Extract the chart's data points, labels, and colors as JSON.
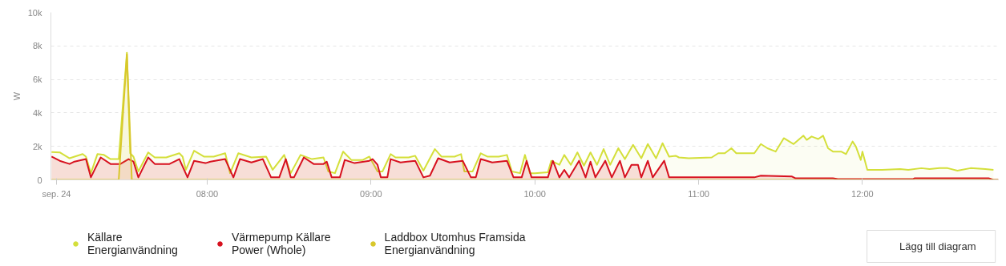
{
  "chart_data": {
    "type": "area",
    "ylabel": "W",
    "xlim": [
      7.046,
      12.83
    ],
    "xticks": [
      {
        "value": 7.08,
        "label": "sep. 24"
      },
      {
        "value": 8,
        "label": "08:00"
      },
      {
        "value": 9,
        "label": "09:00"
      },
      {
        "value": 10,
        "label": "10:00"
      },
      {
        "value": 11,
        "label": "11:00"
      },
      {
        "value": 12,
        "label": "12:00"
      }
    ],
    "ylim": [
      0,
      10000
    ],
    "yticks": [
      0,
      {
        "value": 2000,
        "label": "2k"
      },
      {
        "value": 4000,
        "label": "4k"
      },
      {
        "value": 6000,
        "label": "6k"
      },
      {
        "value": 8000,
        "label": "8k"
      },
      {
        "value": 10000,
        "label": "10k"
      }
    ],
    "grid": "y",
    "legend": "bottom",
    "annotations": [
      "Lägg till diagram"
    ],
    "series": [
      {
        "name": "Källare\nEnergianvändning",
        "color": "#d4df3a",
        "x": [
          7.05,
          7.1,
          7.16,
          7.24,
          7.26,
          7.29,
          7.33,
          7.37,
          7.41,
          7.46,
          7.51,
          7.53,
          7.55,
          7.58,
          7.64,
          7.68,
          7.75,
          7.83,
          7.85,
          7.87,
          7.92,
          7.98,
          8.04,
          8.11,
          8.14,
          8.19,
          8.27,
          8.36,
          8.4,
          8.47,
          8.51,
          8.57,
          8.64,
          8.71,
          8.74,
          8.78,
          8.83,
          8.88,
          8.95,
          8.99,
          9.04,
          9.07,
          9.12,
          9.15,
          9.23,
          9.27,
          9.32,
          9.36,
          9.39,
          9.43,
          9.51,
          9.55,
          9.57,
          9.62,
          9.67,
          9.71,
          9.78,
          9.83,
          9.86,
          9.91,
          9.94,
          9.97,
          10.0,
          10.08,
          10.1,
          10.15,
          10.18,
          10.22,
          10.26,
          10.3,
          10.34,
          10.38,
          10.42,
          10.46,
          10.51,
          10.55,
          10.6,
          10.65,
          10.69,
          10.74,
          10.78,
          10.82,
          10.86,
          10.88,
          10.94,
          11.08,
          11.12,
          11.16,
          11.2,
          11.23,
          11.34,
          11.38,
          11.42,
          11.47,
          11.52,
          11.58,
          11.64,
          11.66,
          11.69,
          11.73,
          11.76,
          11.79,
          11.82,
          11.87,
          11.9,
          11.94,
          11.96,
          11.99,
          12.0,
          12.03,
          12.12,
          12.23,
          12.28,
          12.36,
          12.41,
          12.47,
          12.52,
          12.58,
          12.66,
          12.75,
          12.8
        ],
        "values": [
          1660,
          1640,
          1290,
          1540,
          1390,
          400,
          1540,
          1490,
          1240,
          1240,
          7600,
          1590,
          1390,
          500,
          1640,
          1340,
          1340,
          1590,
          1390,
          600,
          1740,
          1390,
          1390,
          1590,
          400,
          1590,
          1340,
          1390,
          600,
          1490,
          400,
          1490,
          1240,
          1340,
          500,
          400,
          1690,
          1190,
          1190,
          1390,
          500,
          500,
          1540,
          1340,
          1340,
          1440,
          550,
          1290,
          1840,
          1390,
          1390,
          1540,
          500,
          500,
          1590,
          1390,
          1390,
          1490,
          500,
          400,
          1490,
          400,
          400,
          450,
          1140,
          900,
          1490,
          900,
          1640,
          850,
          1640,
          900,
          1840,
          900,
          1890,
          1240,
          2090,
          1290,
          2140,
          1290,
          2190,
          1390,
          1440,
          1340,
          1290,
          1340,
          1590,
          1590,
          1890,
          1590,
          1590,
          2140,
          1890,
          1690,
          2490,
          2140,
          2640,
          2390,
          2590,
          2440,
          2640,
          1890,
          1690,
          1690,
          1540,
          2290,
          1990,
          1190,
          1690,
          600,
          600,
          650,
          600,
          700,
          650,
          700,
          700,
          550,
          700,
          650,
          600
        ]
      },
      {
        "name": "Värmepump Källare\nPower (Whole)",
        "color": "#d7111f",
        "x": [
          7.05,
          7.1,
          7.16,
          7.19,
          7.26,
          7.29,
          7.33,
          7.35,
          7.41,
          7.47,
          7.52,
          7.55,
          7.58,
          7.62,
          7.64,
          7.68,
          7.77,
          7.83,
          7.88,
          7.92,
          7.99,
          8.02,
          8.11,
          8.16,
          8.2,
          8.27,
          8.34,
          8.39,
          8.44,
          8.48,
          8.51,
          8.53,
          8.59,
          8.65,
          8.71,
          8.73,
          8.76,
          8.81,
          8.84,
          8.9,
          8.99,
          9.01,
          9.04,
          9.06,
          9.1,
          9.12,
          9.18,
          9.27,
          9.32,
          9.36,
          9.41,
          9.48,
          9.56,
          9.61,
          9.64,
          9.67,
          9.74,
          9.83,
          9.87,
          9.92,
          9.95,
          9.98,
          10.08,
          10.11,
          10.15,
          10.18,
          10.21,
          10.27,
          10.31,
          10.34,
          10.37,
          10.43,
          10.47,
          10.52,
          10.55,
          10.59,
          10.63,
          10.65,
          10.69,
          10.72,
          10.79,
          10.82,
          11.34,
          11.38,
          11.57,
          11.59,
          11.82,
          11.85,
          12.31,
          12.32,
          12.77,
          12.8,
          12.83
        ],
        "values": [
          1390,
          1140,
          950,
          1090,
          1240,
          150,
          950,
          1340,
          950,
          950,
          1240,
          1090,
          150,
          950,
          1340,
          950,
          950,
          1240,
          150,
          1140,
          1000,
          1090,
          1240,
          150,
          1240,
          1040,
          1240,
          150,
          150,
          1240,
          150,
          150,
          1340,
          950,
          950,
          1090,
          150,
          150,
          1190,
          1000,
          1140,
          1240,
          900,
          150,
          150,
          1240,
          1040,
          1140,
          150,
          250,
          1290,
          1040,
          1140,
          150,
          150,
          1240,
          1040,
          1140,
          150,
          150,
          1140,
          150,
          150,
          1140,
          150,
          600,
          150,
          1140,
          150,
          1090,
          150,
          1140,
          150,
          1140,
          150,
          900,
          900,
          150,
          1140,
          150,
          1140,
          150,
          150,
          250,
          200,
          100,
          100,
          50,
          50,
          100,
          100,
          0,
          0
        ]
      },
      {
        "name": "Laddbox Utomhus Framsida\nEnergianvändning",
        "color": "#d8c72b",
        "x": [
          7.05,
          7.46,
          7.51,
          7.54,
          12.83
        ],
        "values": [
          0,
          0,
          7500,
          0,
          0
        ]
      }
    ]
  }
}
